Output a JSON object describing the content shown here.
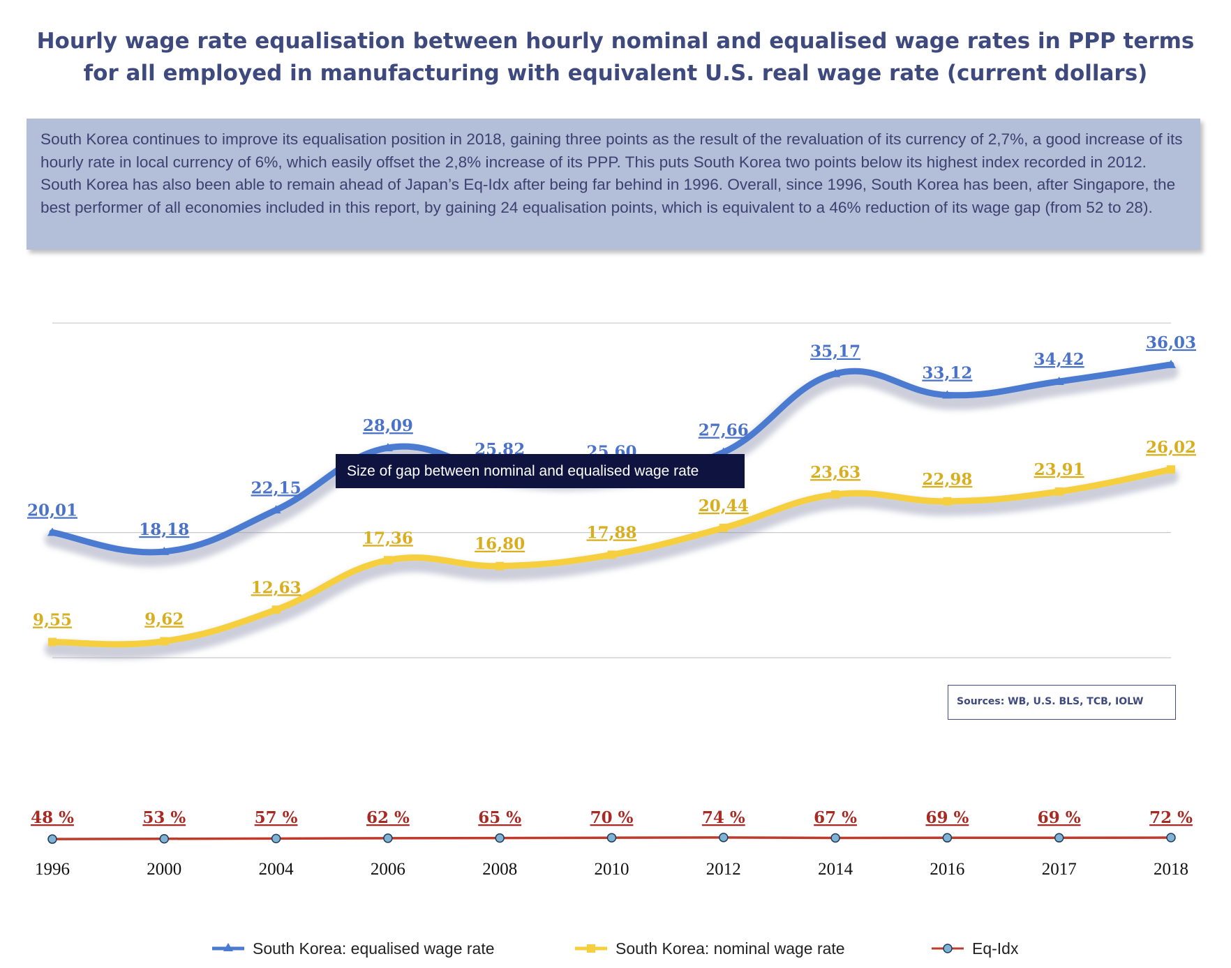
{
  "title": {
    "line1": "Hourly wage rate equalisation between hourly nominal and equalised wage rates in PPP terms",
    "line2": "for all employed in manufacturing with equivalent U.S. real wage rate (current dollars)"
  },
  "note": "South Korea continues to improve its equalisation position in 2018, gaining three points as the result of the revaluation of its currency of 2,7%, a good increase of its hourly rate in local currency of 6%, which easily offset the 2,8% increase of its PPP. This puts South Korea two points below its highest index recorded in 2012. South Korea has also been able to remain ahead of Japan’s Eq-Idx after being far behind in 1996. Overall, since 1996, South Korea has been, after Singapore, the best performer of all economies included in this report, by gaining 24 equalisation points, which is equivalent to a 46% reduction of its wage gap (from 52 to 28).",
  "gap_label": "Size of gap between nominal and equalised wage rate",
  "sources": "Sources: WB, U.S. BLS, TCB, IOLW",
  "colors": {
    "equalised": "#4a7bd0",
    "nominal": "#f6cf3f",
    "eqidx": "#c0392b",
    "eqidx_marker": "#7fb3d5",
    "label_eq": "#4a72c8",
    "label_nom": "#d9ae1e",
    "label_idx": "#a82a24"
  },
  "chart_data": {
    "type": "line",
    "categories": [
      "1996",
      "2000",
      "2004",
      "2006",
      "2008",
      "2010",
      "2012",
      "2014",
      "2016",
      "2017",
      "2018"
    ],
    "series": [
      {
        "name": "South Korea: equalised wage rate",
        "values": [
          20.01,
          18.18,
          22.15,
          28.09,
          25.82,
          25.6,
          27.66,
          35.17,
          33.12,
          34.42,
          36.03
        ],
        "labels": [
          "20,01",
          "18,18",
          "22,15",
          "28,09",
          "25,82",
          "25,60",
          "27,66",
          "35,17",
          "33,12",
          "34,42",
          "36,03"
        ]
      },
      {
        "name": "South Korea: nominal wage rate",
        "values": [
          9.55,
          9.62,
          12.63,
          17.36,
          16.8,
          17.88,
          20.44,
          23.63,
          22.98,
          23.91,
          26.02
        ],
        "labels": [
          "9,55",
          "9,62",
          "12,63",
          "17,36",
          "16,80",
          "17,88",
          "20,44",
          "23,63",
          "22,98",
          "23,91",
          "26,02"
        ]
      },
      {
        "name": "Eq-Idx",
        "values": [
          48,
          53,
          57,
          62,
          65,
          70,
          74,
          67,
          69,
          69,
          72
        ],
        "labels": [
          "48 %",
          "53 %",
          "57 %",
          "62 %",
          "65 %",
          "70 %",
          "74 %",
          "67 %",
          "69 %",
          "69 %",
          "72 %"
        ]
      }
    ],
    "xlabel": "",
    "ylabel": "",
    "ylim": [
      0,
      40
    ],
    "grid": true,
    "legend": "bottom"
  }
}
